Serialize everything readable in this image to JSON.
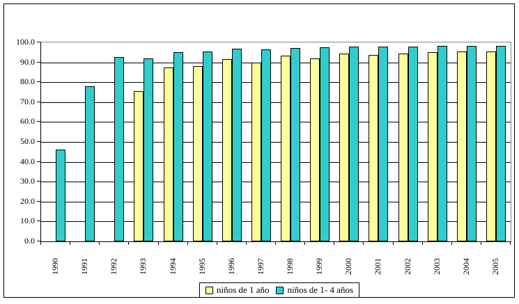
{
  "chart_data": {
    "type": "bar",
    "title": "",
    "categories": [
      "1990",
      "1991",
      "1992",
      "1993",
      "1994",
      "1995",
      "1996",
      "1997",
      "1998",
      "1999",
      "2000",
      "2001",
      "2002",
      "2003",
      "2004",
      "2005"
    ],
    "series": [
      {
        "name": "niños de 1 año",
        "color": "#FFFF99",
        "values": [
          null,
          null,
          null,
          75.5,
          87.5,
          88.0,
          91.5,
          89.8,
          93.4,
          92.1,
          94.5,
          93.8,
          94.3,
          95.1,
          95.5,
          95.4
        ]
      },
      {
        "name": "niños de 1- 4 años",
        "color": "#33CCCC",
        "values": [
          46.0,
          78.0,
          92.5,
          91.8,
          95.1,
          95.5,
          96.8,
          96.6,
          97.2,
          97.6,
          97.9,
          97.9,
          98.0,
          98.3,
          98.2,
          98.3
        ]
      }
    ],
    "xlabel": "",
    "ylabel": "",
    "ylim": [
      0,
      100
    ],
    "ytick_step": 10,
    "ytick_labels": [
      "0.0",
      "10.0",
      "20.0",
      "30.0",
      "40.0",
      "50.0",
      "60.0",
      "70.0",
      "80.0",
      "90.0",
      "100.0"
    ],
    "grid": true,
    "legend_position": "bottom-center",
    "colors": {
      "bar_border": "#000000",
      "plot_border": "#848484",
      "axis": "#000000",
      "gridline": "#000000",
      "background": "#ffffff",
      "outer_border": "#000000"
    }
  }
}
